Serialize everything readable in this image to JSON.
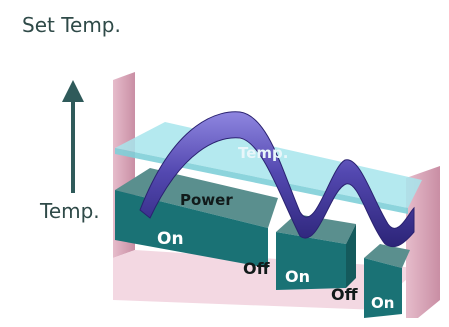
{
  "axis": {
    "top_label": "Set Temp.",
    "side_label": "Temp."
  },
  "diagram": {
    "curve_label": "Temp.",
    "power_label": "Power",
    "blocks": [
      {
        "state": "On"
      },
      {
        "state": "On"
      },
      {
        "state": "On"
      }
    ],
    "gaps": [
      {
        "state": "Off"
      },
      {
        "state": "Off"
      }
    ]
  },
  "colors": {
    "label_text": "#2f4a48",
    "setpoint_plane": "#9fe2ea",
    "block_front": "#1a7275",
    "block_top": "#5a8f8e",
    "curve": "#5348b0",
    "wall": "#d8a8ba",
    "floor": "#f3d8e2"
  },
  "icons": {
    "axis_arrow": "up-arrow-icon"
  }
}
